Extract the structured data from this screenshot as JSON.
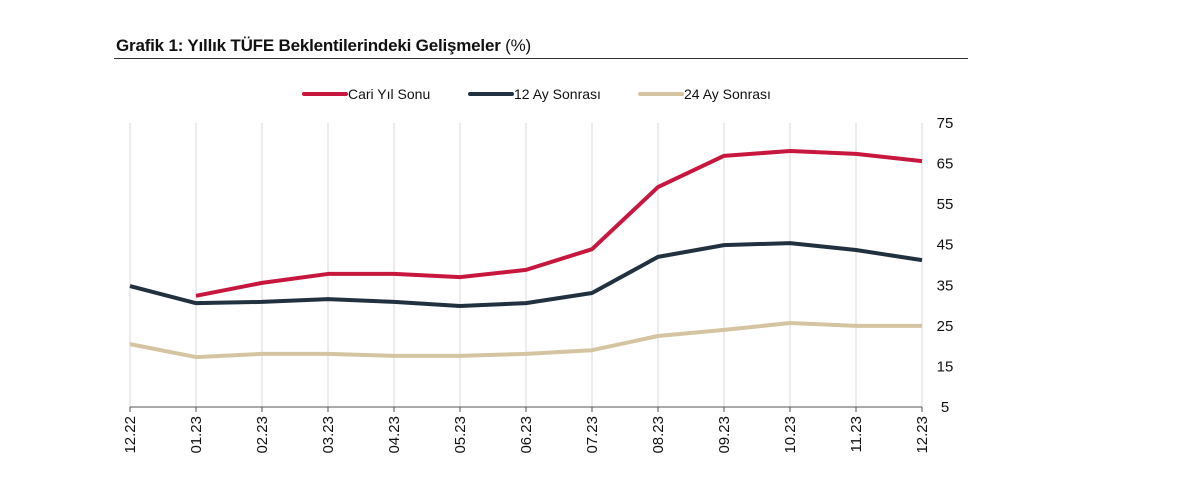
{
  "chart_data": {
    "type": "line",
    "title": "Grafik 1: Yıllık TÜFE Beklentilerindeki Gelişmeler",
    "title_unit": "(%)",
    "categories": [
      "12.22",
      "01.23",
      "02.23",
      "03.23",
      "04.23",
      "05.23",
      "06.23",
      "07.23",
      "08.23",
      "09.23",
      "10.23",
      "11.23",
      "12.23"
    ],
    "series": [
      {
        "name": "Cari Yıl Sonu",
        "color": "#c8173e",
        "values": [
          null,
          32.4,
          35.6,
          37.8,
          37.8,
          37.0,
          38.8,
          43.9,
          59.2,
          66.9,
          68.1,
          67.4,
          65.6
        ]
      },
      {
        "name": "12 Ay Sonrası",
        "color": "#22313f",
        "values": [
          34.8,
          30.6,
          30.9,
          31.6,
          30.9,
          29.9,
          30.6,
          33.1,
          42.0,
          44.9,
          45.4,
          43.7,
          41.2
        ]
      },
      {
        "name": "24 Ay Sonrası",
        "color": "#d5c4a1",
        "values": [
          20.5,
          17.3,
          18.1,
          18.1,
          17.6,
          17.6,
          18.1,
          19.0,
          22.5,
          24.0,
          25.7,
          25.0,
          25.0
        ]
      }
    ],
    "ylim": [
      5,
      75
    ],
    "yticks": [
      5,
      15,
      25,
      35,
      45,
      55,
      65,
      75
    ],
    "yaxis_side": "right",
    "grid": "vertical",
    "legend": "top"
  }
}
